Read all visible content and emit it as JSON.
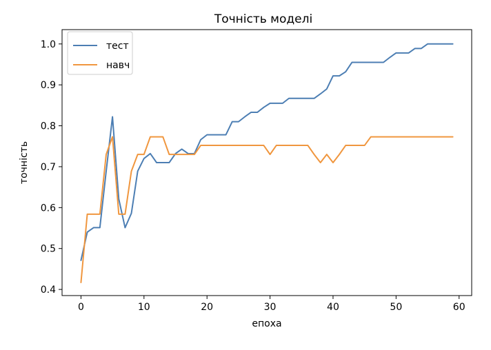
{
  "chart_data": {
    "type": "line",
    "title": "Точність моделі",
    "xlabel": "епоха",
    "ylabel": "точність",
    "xlim": [
      -3,
      62
    ],
    "ylim": [
      0.385,
      1.035
    ],
    "xticks": [
      0,
      10,
      20,
      30,
      40,
      50,
      60
    ],
    "yticks": [
      0.4,
      0.5,
      0.6,
      0.7,
      0.8,
      0.9,
      1.0
    ],
    "xtick_labels": [
      "0",
      "10",
      "20",
      "30",
      "40",
      "50",
      "60"
    ],
    "ytick_labels": [
      "0.4",
      "0.5",
      "0.6",
      "0.7",
      "0.8",
      "0.9",
      "1.0"
    ],
    "grid": false,
    "legend_position": "top-left",
    "x": [
      0,
      1,
      2,
      3,
      4,
      5,
      6,
      7,
      8,
      9,
      10,
      11,
      12,
      13,
      14,
      15,
      16,
      17,
      18,
      19,
      20,
      21,
      22,
      23,
      24,
      25,
      26,
      27,
      28,
      29,
      30,
      31,
      32,
      33,
      34,
      35,
      36,
      37,
      38,
      39,
      40,
      41,
      42,
      43,
      44,
      45,
      46,
      47,
      48,
      49,
      50,
      51,
      52,
      53,
      54,
      55,
      56,
      57,
      58,
      59
    ],
    "series": [
      {
        "name": "тест",
        "color": "#4c7eb3",
        "values": [
          0.471,
          0.54,
          0.551,
          0.551,
          0.689,
          0.822,
          0.621,
          0.551,
          0.586,
          0.689,
          0.72,
          0.732,
          0.71,
          0.71,
          0.71,
          0.732,
          0.743,
          0.732,
          0.732,
          0.766,
          0.778,
          0.778,
          0.778,
          0.778,
          0.81,
          0.81,
          0.822,
          0.833,
          0.833,
          0.845,
          0.855,
          0.855,
          0.855,
          0.867,
          0.867,
          0.867,
          0.867,
          0.867,
          0.878,
          0.89,
          0.922,
          0.922,
          0.932,
          0.955,
          0.955,
          0.955,
          0.955,
          0.955,
          0.955,
          0.967,
          0.978,
          0.978,
          0.978,
          0.989,
          0.989,
          1.0,
          1.0,
          1.0,
          1.0,
          1.0
        ]
      },
      {
        "name": "навч",
        "color": "#f0963e",
        "values": [
          0.417,
          0.584,
          0.584,
          0.584,
          0.73,
          0.773,
          0.584,
          0.584,
          0.689,
          0.73,
          0.73,
          0.773,
          0.773,
          0.773,
          0.73,
          0.73,
          0.73,
          0.73,
          0.73,
          0.752,
          0.752,
          0.752,
          0.752,
          0.752,
          0.752,
          0.752,
          0.752,
          0.752,
          0.752,
          0.752,
          0.73,
          0.752,
          0.752,
          0.752,
          0.752,
          0.752,
          0.752,
          0.73,
          0.71,
          0.73,
          0.71,
          0.73,
          0.752,
          0.752,
          0.752,
          0.752,
          0.773,
          0.773,
          0.773,
          0.773,
          0.773,
          0.773,
          0.773,
          0.773,
          0.773,
          0.773,
          0.773,
          0.773,
          0.773,
          0.773
        ]
      }
    ]
  }
}
